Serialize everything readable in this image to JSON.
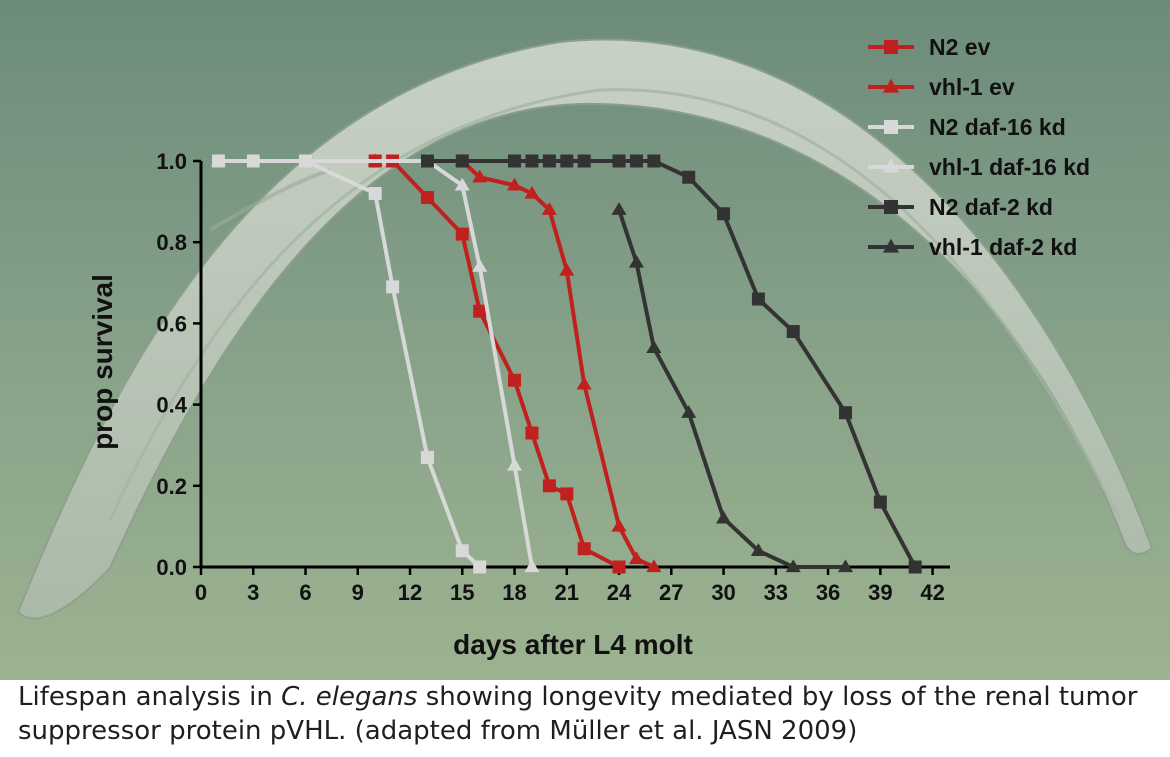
{
  "caption": {
    "part1": "Lifespan analysis in ",
    "species": "C. elegans",
    "part2": " showing longevity mediated by loss of the renal tumor suppressor protein pVHL. (adapted from Müller et al. JASN 2009)"
  },
  "chart_data": {
    "type": "line",
    "title": "",
    "xlabel": "days after L4 molt",
    "ylabel": "prop survival",
    "xlim": [
      0,
      43
    ],
    "ylim": [
      0,
      1.0
    ],
    "xticks": [
      0,
      3,
      6,
      9,
      12,
      15,
      18,
      21,
      24,
      27,
      30,
      33,
      36,
      39,
      42
    ],
    "yticks": [
      0.0,
      0.2,
      0.4,
      0.6,
      0.8,
      1.0
    ],
    "ytick_labels": [
      "0.0",
      "0.2",
      "0.4",
      "0.6",
      "0.8",
      "1.0"
    ],
    "legend_position": "top-right",
    "grid": false,
    "series": [
      {
        "name": "N2 ev",
        "marker": "square",
        "color": "#c0201e",
        "x": [
          1,
          3,
          6,
          10,
          11,
          13,
          15,
          16,
          18,
          19,
          20,
          21,
          22,
          24
        ],
        "y": [
          1.0,
          1.0,
          1.0,
          1.0,
          1.0,
          0.91,
          0.82,
          0.63,
          0.46,
          0.33,
          0.2,
          0.18,
          0.045,
          0.0
        ]
      },
      {
        "name": "vhl-1 ev",
        "marker": "triangle",
        "color": "#c0201e",
        "x": [
          1,
          10,
          15,
          16,
          18,
          19,
          20,
          21,
          22,
          24,
          25,
          26
        ],
        "y": [
          1.0,
          1.0,
          1.0,
          0.96,
          0.94,
          0.92,
          0.88,
          0.73,
          0.45,
          0.1,
          0.02,
          0.0
        ]
      },
      {
        "name": "N2 daf-16 kd",
        "marker": "square",
        "color": "#d8d8d8",
        "x": [
          1,
          3,
          6,
          10,
          11,
          13,
          15,
          16
        ],
        "y": [
          1.0,
          1.0,
          1.0,
          0.92,
          0.69,
          0.27,
          0.04,
          0.0
        ]
      },
      {
        "name": "vhl-1 daf-16 kd",
        "marker": "triangle",
        "color": "#d8d8d8",
        "x": [
          1,
          13,
          15,
          16,
          18,
          19
        ],
        "y": [
          1.0,
          1.0,
          0.94,
          0.74,
          0.25,
          0.0
        ]
      },
      {
        "name": "N2 daf-2 kd",
        "marker": "square",
        "color": "#333333",
        "x": [
          13,
          15,
          18,
          19,
          20,
          21,
          22,
          24,
          25,
          26,
          28,
          30,
          32,
          34,
          37,
          39,
          41
        ],
        "y": [
          1.0,
          1.0,
          1.0,
          1.0,
          1.0,
          1.0,
          1.0,
          1.0,
          1.0,
          1.0,
          0.96,
          0.87,
          0.66,
          0.58,
          0.38,
          0.16,
          0.0
        ]
      },
      {
        "name": "vhl-1 daf-2 kd",
        "marker": "triangle",
        "color": "#333333",
        "x": [
          24,
          25,
          26,
          28,
          30,
          32,
          34,
          37
        ],
        "y": [
          0.88,
          0.75,
          0.54,
          0.38,
          0.12,
          0.04,
          0.0,
          0.0
        ]
      }
    ]
  }
}
